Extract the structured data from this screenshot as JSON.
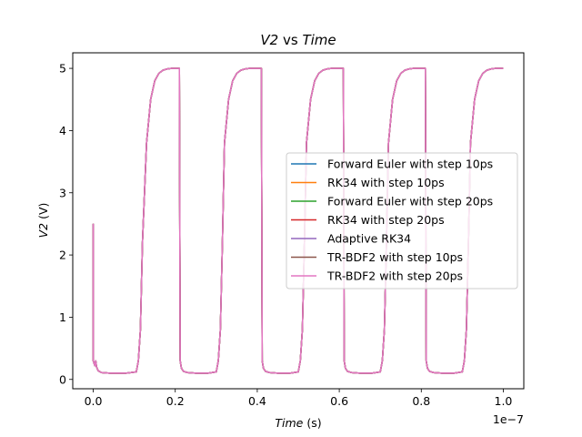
{
  "chart_data": {
    "type": "line",
    "title": "V2 vs Time",
    "title_parts": {
      "var": "V2",
      "sep": " vs ",
      "time": "Time"
    },
    "xlabel": "Time (s)",
    "xlabel_parts": {
      "var": "Time",
      "unit": " (s)"
    },
    "ylabel": "V2 (V)",
    "ylabel_parts": {
      "var": "V2",
      "unit": " (V)"
    },
    "x_offset_text": "1e−7",
    "xlim": [
      -0.05,
      1.05
    ],
    "ylim": [
      -0.15,
      5.25
    ],
    "x_scale": 1e-07,
    "xticks": [
      0.0,
      0.2,
      0.4,
      0.6,
      0.8,
      1.0
    ],
    "xtick_labels": [
      "0.0",
      "0.2",
      "0.4",
      "0.6",
      "0.8",
      "1.0"
    ],
    "yticks": [
      0,
      1,
      2,
      3,
      4,
      5
    ],
    "ytick_labels": [
      "0",
      "1",
      "2",
      "3",
      "4",
      "5"
    ],
    "grid": false,
    "legend_position": "center-right",
    "waveform": {
      "x": [
        0.0,
        0.0,
        0.004,
        0.006,
        0.008,
        0.012,
        0.02,
        0.04,
        0.08,
        0.105,
        0.11,
        0.115,
        0.12,
        0.13,
        0.14,
        0.15,
        0.16,
        0.17,
        0.18,
        0.19,
        0.2,
        0.21,
        0.212,
        0.215,
        0.22,
        0.23,
        0.25,
        0.28,
        0.3,
        0.305,
        0.31,
        0.315,
        0.32,
        0.33,
        0.34,
        0.35,
        0.36,
        0.37,
        0.38,
        0.39,
        0.4,
        0.41,
        0.412,
        0.415,
        0.42,
        0.43,
        0.45,
        0.48,
        0.5,
        0.505,
        0.51,
        0.515,
        0.52,
        0.53,
        0.54,
        0.55,
        0.56,
        0.57,
        0.58,
        0.59,
        0.6,
        0.61,
        0.612,
        0.615,
        0.62,
        0.63,
        0.65,
        0.68,
        0.7,
        0.705,
        0.71,
        0.715,
        0.72,
        0.73,
        0.74,
        0.75,
        0.76,
        0.77,
        0.78,
        0.79,
        0.8,
        0.81,
        0.812,
        0.815,
        0.82,
        0.83,
        0.85,
        0.88,
        0.9,
        0.905,
        0.91,
        0.915,
        0.92,
        0.93,
        0.94,
        0.95,
        0.96,
        0.97,
        0.98,
        0.99,
        1.0
      ],
      "y": [
        2.5,
        0.3,
        0.22,
        0.3,
        0.2,
        0.14,
        0.11,
        0.1,
        0.1,
        0.12,
        0.3,
        0.8,
        2.2,
        3.8,
        4.5,
        4.8,
        4.92,
        4.97,
        4.99,
        5.0,
        5.0,
        5.0,
        0.3,
        0.18,
        0.13,
        0.11,
        0.1,
        0.1,
        0.12,
        0.3,
        0.8,
        2.2,
        3.8,
        4.5,
        4.8,
        4.92,
        4.97,
        4.99,
        5.0,
        5.0,
        5.0,
        5.0,
        0.3,
        0.18,
        0.13,
        0.11,
        0.1,
        0.1,
        0.12,
        0.3,
        0.8,
        2.2,
        3.8,
        4.5,
        4.8,
        4.92,
        4.97,
        4.99,
        5.0,
        5.0,
        5.0,
        5.0,
        0.3,
        0.18,
        0.13,
        0.11,
        0.1,
        0.1,
        0.12,
        0.3,
        0.8,
        2.2,
        3.8,
        4.5,
        4.8,
        4.92,
        4.97,
        4.99,
        5.0,
        5.0,
        5.0,
        5.0,
        0.3,
        0.18,
        0.13,
        0.11,
        0.1,
        0.1,
        0.12,
        0.3,
        0.8,
        2.2,
        3.8,
        4.5,
        4.8,
        4.92,
        4.97,
        4.99,
        5.0,
        5.0,
        5.0
      ]
    },
    "series": [
      {
        "name": "Forward Euler with step 10ps",
        "color": "#1f77b4"
      },
      {
        "name": "RK34 with step 10ps",
        "color": "#ff7f0e"
      },
      {
        "name": "Forward Euler with step 20ps",
        "color": "#2ca02c"
      },
      {
        "name": "RK34 with step 20ps",
        "color": "#d62728"
      },
      {
        "name": "Adaptive RK34",
        "color": "#9467bd"
      },
      {
        "name": "TR-BDF2 with step 10ps",
        "color": "#8c564b"
      },
      {
        "name": "TR-BDF2 with step 20ps",
        "color": "#e377c2"
      }
    ]
  }
}
